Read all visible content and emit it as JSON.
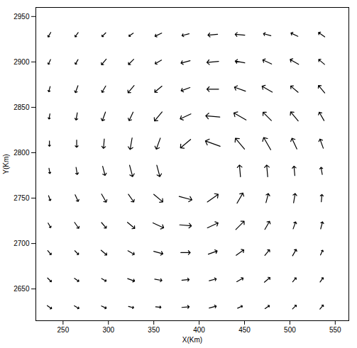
{
  "chart_data": {
    "type": "vector",
    "x_label": "X(Km)",
    "y_label": "Y(Km)",
    "xlim": [
      220,
      565
    ],
    "ylim": [
      2615,
      2960
    ],
    "xticks": [
      250,
      300,
      350,
      400,
      450,
      500,
      550
    ],
    "yticks": [
      2650,
      2700,
      2750,
      2800,
      2850,
      2900,
      2950
    ],
    "color": "#000000",
    "vectors": {
      "x": [
        235,
        265,
        295,
        325,
        355,
        385,
        415,
        445,
        475,
        505,
        535,
        235,
        265,
        295,
        325,
        355,
        385,
        415,
        445,
        475,
        505,
        535,
        235,
        265,
        295,
        325,
        355,
        385,
        415,
        445,
        475,
        505,
        535,
        235,
        265,
        295,
        325,
        355,
        385,
        415,
        445,
        475,
        505,
        535,
        235,
        265,
        295,
        325,
        355,
        385,
        415,
        445,
        475,
        505,
        535,
        235,
        265,
        295,
        325,
        355,
        445,
        475,
        505,
        535,
        235,
        265,
        295,
        325,
        355,
        385,
        415,
        445,
        475,
        505,
        535,
        235,
        265,
        295,
        325,
        355,
        385,
        415,
        445,
        475,
        505,
        535,
        235,
        265,
        295,
        325,
        355,
        385,
        415,
        445,
        475,
        505,
        535,
        235,
        265,
        295,
        325,
        355,
        385,
        415,
        445,
        475,
        505,
        535,
        235,
        265,
        295,
        325,
        355,
        385,
        415,
        445,
        475,
        505,
        535
      ],
      "y": [
        2930,
        2930,
        2930,
        2930,
        2930,
        2930,
        2930,
        2930,
        2930,
        2930,
        2930,
        2900,
        2900,
        2900,
        2900,
        2900,
        2900,
        2900,
        2900,
        2900,
        2900,
        2900,
        2870,
        2870,
        2870,
        2870,
        2870,
        2870,
        2870,
        2870,
        2870,
        2870,
        2870,
        2840,
        2840,
        2840,
        2840,
        2840,
        2840,
        2840,
        2840,
        2840,
        2840,
        2840,
        2810,
        2810,
        2810,
        2810,
        2810,
        2810,
        2810,
        2810,
        2810,
        2810,
        2810,
        2780,
        2780,
        2780,
        2780,
        2780,
        2780,
        2780,
        2780,
        2780,
        2750,
        2750,
        2750,
        2750,
        2750,
        2750,
        2750,
        2750,
        2750,
        2750,
        2750,
        2720,
        2720,
        2720,
        2720,
        2720,
        2720,
        2720,
        2720,
        2720,
        2720,
        2720,
        2690,
        2690,
        2690,
        2690,
        2690,
        2690,
        2690,
        2690,
        2690,
        2690,
        2690,
        2660,
        2660,
        2660,
        2660,
        2660,
        2660,
        2660,
        2660,
        2660,
        2660,
        2660,
        2630,
        2630,
        2630,
        2630,
        2630,
        2630,
        2630,
        2630,
        2630,
        2630,
        2630
      ],
      "direction": [
        210,
        215,
        225,
        235,
        245,
        255,
        265,
        275,
        285,
        295,
        305,
        205,
        210,
        220,
        225,
        240,
        255,
        265,
        280,
        295,
        300,
        310,
        195,
        200,
        210,
        220,
        230,
        250,
        270,
        290,
        300,
        310,
        320,
        190,
        190,
        200,
        205,
        220,
        245,
        275,
        300,
        315,
        320,
        330,
        180,
        180,
        185,
        190,
        200,
        230,
        290,
        320,
        330,
        335,
        340,
        170,
        170,
        165,
        165,
        165,
        355,
        355,
        355,
        350,
        160,
        155,
        150,
        145,
        130,
        105,
        55,
        30,
        15,
        10,
        5,
        150,
        145,
        140,
        130,
        115,
        95,
        65,
        45,
        30,
        20,
        15,
        140,
        135,
        130,
        120,
        105,
        90,
        70,
        55,
        40,
        30,
        25,
        135,
        125,
        120,
        110,
        100,
        85,
        75,
        60,
        50,
        40,
        35,
        125,
        120,
        115,
        105,
        95,
        85,
        75,
        65,
        55,
        45,
        40
      ],
      "speed": [
        18,
        18,
        18,
        18,
        25,
        25,
        33,
        33,
        26,
        26,
        26,
        18,
        18,
        25,
        25,
        25,
        32,
        40,
        33,
        33,
        33,
        26,
        18,
        25,
        25,
        32,
        32,
        32,
        40,
        40,
        40,
        33,
        33,
        18,
        25,
        32,
        32,
        40,
        40,
        48,
        48,
        40,
        40,
        33,
        18,
        25,
        32,
        40,
        40,
        45,
        53,
        48,
        48,
        40,
        33,
        18,
        25,
        32,
        40,
        40,
        40,
        40,
        32,
        25,
        18,
        25,
        32,
        32,
        40,
        45,
        45,
        40,
        32,
        32,
        25,
        18,
        25,
        25,
        32,
        40,
        40,
        40,
        40,
        32,
        25,
        25,
        18,
        18,
        25,
        25,
        32,
        32,
        32,
        32,
        25,
        25,
        18,
        18,
        18,
        18,
        25,
        25,
        25,
        25,
        25,
        25,
        18,
        18,
        18,
        18,
        18,
        18,
        18,
        25,
        25,
        18,
        18,
        18,
        18
      ]
    }
  }
}
